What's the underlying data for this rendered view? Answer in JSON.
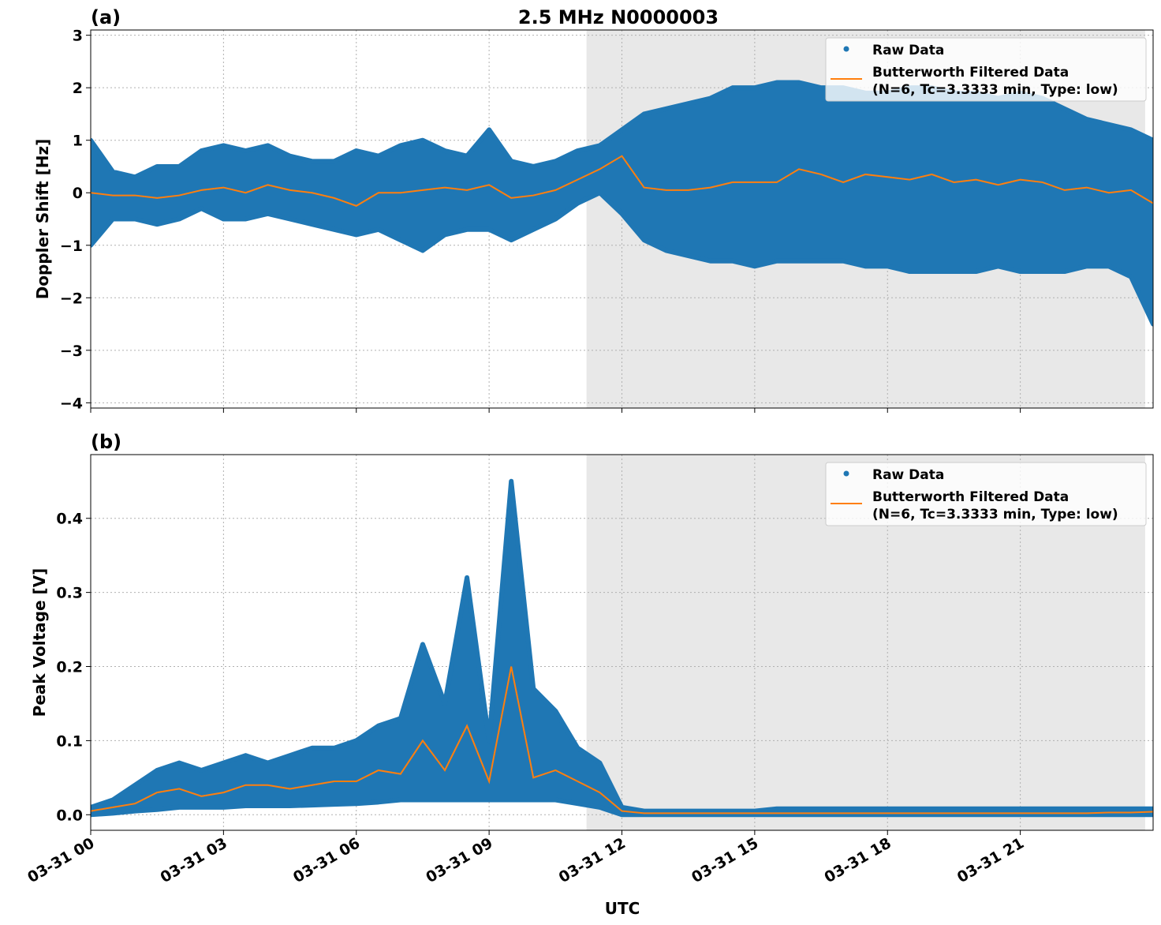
{
  "title": "2.5 MHz N0000003",
  "colors": {
    "raw": "#1f77b4",
    "filtered": "#ff7f0e",
    "shade": "#e8e8e8",
    "grid": "#b0b0b0"
  },
  "chart_data": [
    {
      "panel_label": "(a)",
      "type": "scatter+line",
      "ylabel": "Doppler Shift [Hz]",
      "ylim": [
        -4.1,
        3.1
      ],
      "yticks": [
        3,
        2,
        1,
        0,
        -1,
        -2,
        -3,
        -4
      ],
      "ytick_labels": [
        "3",
        "2",
        "1",
        "0",
        "−1",
        "−2",
        "−3",
        "−4"
      ],
      "grid": true,
      "legend_placement": "top-right",
      "legend": [
        "Raw Data",
        "Butterworth Filtered Data",
        "(N=6, Tc=3.3333 min, Type: low)"
      ],
      "shaded_hours": [
        11.2,
        23.82
      ],
      "x_hours": [
        0,
        0.5,
        1,
        1.5,
        2,
        2.5,
        3,
        3.5,
        4,
        4.5,
        5,
        5.5,
        6,
        6.5,
        7,
        7.5,
        8,
        8.5,
        9,
        9.5,
        10,
        10.5,
        11,
        11.5,
        12,
        12.5,
        13,
        13.5,
        14,
        14.5,
        15,
        15.5,
        16,
        16.5,
        17,
        17.5,
        18,
        18.5,
        19,
        19.5,
        20,
        20.5,
        21,
        21.5,
        22,
        22.5,
        23,
        23.5,
        24
      ],
      "filtered": [
        0,
        -0.05,
        -0.05,
        -0.1,
        -0.05,
        0.05,
        0.1,
        0,
        0.15,
        0.05,
        0,
        -0.1,
        -0.25,
        0,
        0,
        0.05,
        0.1,
        0.05,
        0.15,
        -0.1,
        -0.05,
        0.05,
        0.25,
        0.45,
        0.7,
        0.1,
        0.05,
        0.05,
        0.1,
        0.2,
        0.2,
        0.2,
        0.45,
        0.35,
        0.2,
        0.35,
        0.3,
        0.25,
        0.35,
        0.2,
        0.25,
        0.15,
        0.25,
        0.2,
        0.05,
        0.1,
        0,
        0.05,
        -0.2
      ],
      "raw_upper": [
        1.0,
        0.4,
        0.3,
        0.5,
        0.5,
        0.8,
        0.9,
        0.8,
        0.9,
        0.7,
        0.6,
        0.6,
        0.8,
        0.7,
        0.9,
        1.0,
        0.8,
        0.7,
        1.2,
        0.6,
        0.5,
        0.6,
        0.8,
        0.9,
        1.2,
        1.5,
        1.6,
        1.7,
        1.8,
        2.0,
        2.0,
        2.1,
        2.1,
        2.0,
        2.0,
        1.9,
        1.9,
        2.0,
        2.0,
        1.9,
        1.9,
        1.8,
        1.9,
        1.8,
        1.6,
        1.4,
        1.3,
        1.2,
        1.0
      ],
      "raw_lower": [
        -1.0,
        -0.5,
        -0.5,
        -0.6,
        -0.5,
        -0.3,
        -0.5,
        -0.5,
        -0.4,
        -0.5,
        -0.6,
        -0.7,
        -0.8,
        -0.7,
        -0.9,
        -1.1,
        -0.8,
        -0.7,
        -0.7,
        -0.9,
        -0.7,
        -0.5,
        -0.2,
        0.0,
        -0.4,
        -0.9,
        -1.1,
        -1.2,
        -1.3,
        -1.3,
        -1.4,
        -1.3,
        -1.3,
        -1.3,
        -1.3,
        -1.4,
        -1.4,
        -1.5,
        -1.5,
        -1.5,
        -1.5,
        -1.4,
        -1.5,
        -1.5,
        -1.5,
        -1.4,
        -1.4,
        -1.6,
        -2.5
      ]
    },
    {
      "panel_label": "(b)",
      "type": "scatter+line",
      "ylabel": "Peak Voltage [V]",
      "ylim": [
        -0.021,
        0.486
      ],
      "yticks": [
        0.0,
        0.1,
        0.2,
        0.3,
        0.4
      ],
      "ytick_labels": [
        "0.0",
        "0.1",
        "0.2",
        "0.3",
        "0.4"
      ],
      "grid": true,
      "legend_placement": "top-right",
      "legend": [
        "Raw Data",
        "Butterworth Filtered Data",
        "(N=6, Tc=3.3333 min, Type: low)"
      ],
      "shaded_hours": [
        11.2,
        23.82
      ],
      "x_hours": [
        0,
        0.5,
        1,
        1.5,
        2,
        2.5,
        3,
        3.5,
        4,
        4.5,
        5,
        5.5,
        6,
        6.5,
        7,
        7.5,
        8,
        8.5,
        9,
        9.5,
        10,
        10.5,
        11,
        11.5,
        12,
        12.5,
        13,
        13.5,
        14,
        14.5,
        15,
        15.5,
        16,
        16.5,
        17,
        17.5,
        18,
        18.5,
        19,
        19.5,
        20,
        20.5,
        21,
        21.5,
        22,
        22.5,
        23,
        23.5,
        24
      ],
      "filtered": [
        0.005,
        0.01,
        0.015,
        0.03,
        0.035,
        0.025,
        0.03,
        0.04,
        0.04,
        0.035,
        0.04,
        0.045,
        0.045,
        0.06,
        0.055,
        0.1,
        0.06,
        0.12,
        0.045,
        0.2,
        0.05,
        0.06,
        0.045,
        0.03,
        0.005,
        0.002,
        0.002,
        0.002,
        0.002,
        0.002,
        0.002,
        0.002,
        0.002,
        0.002,
        0.002,
        0.002,
        0.002,
        0.002,
        0.002,
        0.002,
        0.002,
        0.002,
        0.002,
        0.002,
        0.002,
        0.002,
        0.003,
        0.003,
        0.004
      ],
      "raw_upper": [
        0.01,
        0.02,
        0.04,
        0.06,
        0.07,
        0.06,
        0.07,
        0.08,
        0.07,
        0.08,
        0.09,
        0.09,
        0.1,
        0.12,
        0.13,
        0.23,
        0.15,
        0.32,
        0.1,
        0.45,
        0.17,
        0.14,
        0.09,
        0.07,
        0.01,
        0.005,
        0.005,
        0.005,
        0.005,
        0.005,
        0.005,
        0.008,
        0.008,
        0.008,
        0.008,
        0.008,
        0.008,
        0.008,
        0.008,
        0.008,
        0.008,
        0.008,
        0.008,
        0.008,
        0.008,
        0.008,
        0.008,
        0.008,
        0.008
      ],
      "raw_lower": [
        0,
        0.002,
        0.005,
        0.007,
        0.01,
        0.01,
        0.01,
        0.012,
        0.012,
        0.012,
        0.013,
        0.014,
        0.015,
        0.017,
        0.02,
        0.02,
        0.02,
        0.02,
        0.02,
        0.02,
        0.02,
        0.02,
        0.015,
        0.01,
        0,
        0,
        0,
        0,
        0,
        0,
        0,
        0,
        0,
        0,
        0,
        0,
        0,
        0,
        0,
        0,
        0,
        0,
        0,
        0,
        0,
        0,
        0,
        0,
        0
      ]
    }
  ],
  "xaxis": {
    "label": "UTC",
    "xlim_hours": [
      0,
      24
    ],
    "tick_hours": [
      0,
      3,
      6,
      9,
      12,
      15,
      18,
      21
    ],
    "tick_labels": [
      "03-31 00",
      "03-31 03",
      "03-31 06",
      "03-31 09",
      "03-31 12",
      "03-31 15",
      "03-31 18",
      "03-31 21"
    ]
  }
}
